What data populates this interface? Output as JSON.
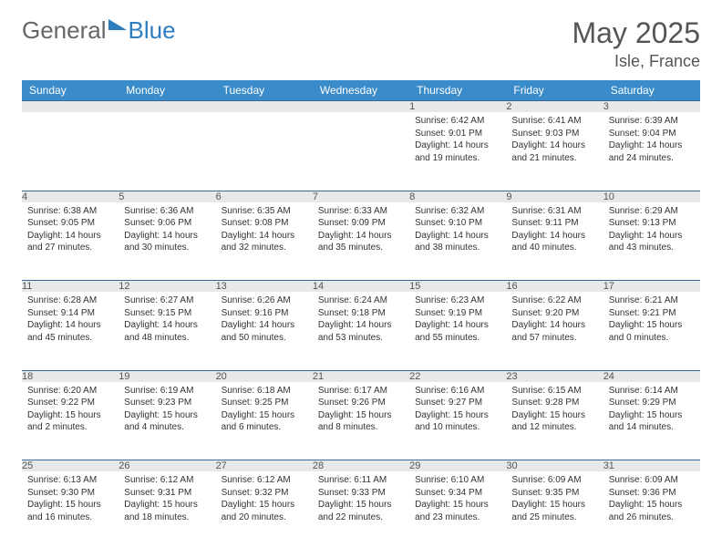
{
  "brand": {
    "part1": "General",
    "part2": "Blue"
  },
  "title": "May 2025",
  "location": "Isle, France",
  "colors": {
    "header_bg": "#3a8bc9",
    "header_text": "#ffffff",
    "daynum_bg": "#e8e8e8",
    "border": "#3a6a9a",
    "text": "#333333",
    "brand_blue": "#2d7dc0"
  },
  "weekdays": [
    "Sunday",
    "Monday",
    "Tuesday",
    "Wednesday",
    "Thursday",
    "Friday",
    "Saturday"
  ],
  "weeks": [
    [
      null,
      null,
      null,
      null,
      {
        "n": "1",
        "sunrise": "6:42 AM",
        "sunset": "9:01 PM",
        "daylight": "14 hours and 19 minutes."
      },
      {
        "n": "2",
        "sunrise": "6:41 AM",
        "sunset": "9:03 PM",
        "daylight": "14 hours and 21 minutes."
      },
      {
        "n": "3",
        "sunrise": "6:39 AM",
        "sunset": "9:04 PM",
        "daylight": "14 hours and 24 minutes."
      }
    ],
    [
      {
        "n": "4",
        "sunrise": "6:38 AM",
        "sunset": "9:05 PM",
        "daylight": "14 hours and 27 minutes."
      },
      {
        "n": "5",
        "sunrise": "6:36 AM",
        "sunset": "9:06 PM",
        "daylight": "14 hours and 30 minutes."
      },
      {
        "n": "6",
        "sunrise": "6:35 AM",
        "sunset": "9:08 PM",
        "daylight": "14 hours and 32 minutes."
      },
      {
        "n": "7",
        "sunrise": "6:33 AM",
        "sunset": "9:09 PM",
        "daylight": "14 hours and 35 minutes."
      },
      {
        "n": "8",
        "sunrise": "6:32 AM",
        "sunset": "9:10 PM",
        "daylight": "14 hours and 38 minutes."
      },
      {
        "n": "9",
        "sunrise": "6:31 AM",
        "sunset": "9:11 PM",
        "daylight": "14 hours and 40 minutes."
      },
      {
        "n": "10",
        "sunrise": "6:29 AM",
        "sunset": "9:13 PM",
        "daylight": "14 hours and 43 minutes."
      }
    ],
    [
      {
        "n": "11",
        "sunrise": "6:28 AM",
        "sunset": "9:14 PM",
        "daylight": "14 hours and 45 minutes."
      },
      {
        "n": "12",
        "sunrise": "6:27 AM",
        "sunset": "9:15 PM",
        "daylight": "14 hours and 48 minutes."
      },
      {
        "n": "13",
        "sunrise": "6:26 AM",
        "sunset": "9:16 PM",
        "daylight": "14 hours and 50 minutes."
      },
      {
        "n": "14",
        "sunrise": "6:24 AM",
        "sunset": "9:18 PM",
        "daylight": "14 hours and 53 minutes."
      },
      {
        "n": "15",
        "sunrise": "6:23 AM",
        "sunset": "9:19 PM",
        "daylight": "14 hours and 55 minutes."
      },
      {
        "n": "16",
        "sunrise": "6:22 AM",
        "sunset": "9:20 PM",
        "daylight": "14 hours and 57 minutes."
      },
      {
        "n": "17",
        "sunrise": "6:21 AM",
        "sunset": "9:21 PM",
        "daylight": "15 hours and 0 minutes."
      }
    ],
    [
      {
        "n": "18",
        "sunrise": "6:20 AM",
        "sunset": "9:22 PM",
        "daylight": "15 hours and 2 minutes."
      },
      {
        "n": "19",
        "sunrise": "6:19 AM",
        "sunset": "9:23 PM",
        "daylight": "15 hours and 4 minutes."
      },
      {
        "n": "20",
        "sunrise": "6:18 AM",
        "sunset": "9:25 PM",
        "daylight": "15 hours and 6 minutes."
      },
      {
        "n": "21",
        "sunrise": "6:17 AM",
        "sunset": "9:26 PM",
        "daylight": "15 hours and 8 minutes."
      },
      {
        "n": "22",
        "sunrise": "6:16 AM",
        "sunset": "9:27 PM",
        "daylight": "15 hours and 10 minutes."
      },
      {
        "n": "23",
        "sunrise": "6:15 AM",
        "sunset": "9:28 PM",
        "daylight": "15 hours and 12 minutes."
      },
      {
        "n": "24",
        "sunrise": "6:14 AM",
        "sunset": "9:29 PM",
        "daylight": "15 hours and 14 minutes."
      }
    ],
    [
      {
        "n": "25",
        "sunrise": "6:13 AM",
        "sunset": "9:30 PM",
        "daylight": "15 hours and 16 minutes."
      },
      {
        "n": "26",
        "sunrise": "6:12 AM",
        "sunset": "9:31 PM",
        "daylight": "15 hours and 18 minutes."
      },
      {
        "n": "27",
        "sunrise": "6:12 AM",
        "sunset": "9:32 PM",
        "daylight": "15 hours and 20 minutes."
      },
      {
        "n": "28",
        "sunrise": "6:11 AM",
        "sunset": "9:33 PM",
        "daylight": "15 hours and 22 minutes."
      },
      {
        "n": "29",
        "sunrise": "6:10 AM",
        "sunset": "9:34 PM",
        "daylight": "15 hours and 23 minutes."
      },
      {
        "n": "30",
        "sunrise": "6:09 AM",
        "sunset": "9:35 PM",
        "daylight": "15 hours and 25 minutes."
      },
      {
        "n": "31",
        "sunrise": "6:09 AM",
        "sunset": "9:36 PM",
        "daylight": "15 hours and 26 minutes."
      }
    ]
  ],
  "labels": {
    "sunrise": "Sunrise:",
    "sunset": "Sunset:",
    "daylight": "Daylight:"
  }
}
